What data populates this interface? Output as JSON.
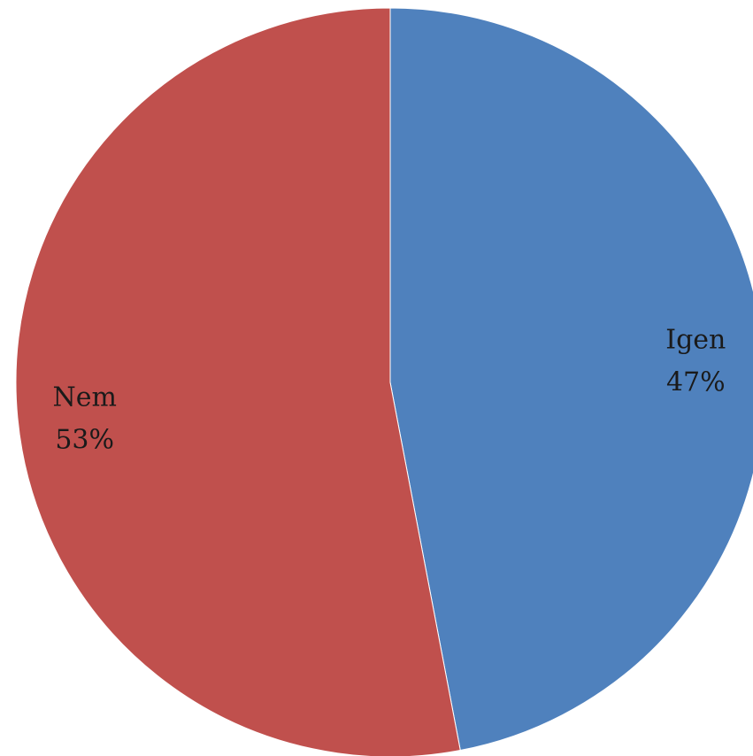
{
  "chart_data": {
    "type": "pie",
    "title": "",
    "start_angle_deg": 0,
    "direction": "clockwise",
    "slices": [
      {
        "label": "Igen",
        "value": 47,
        "display": "47%",
        "color": "#4F81BD"
      },
      {
        "label": "Nem",
        "value": 53,
        "display": "53%",
        "color": "#C0504D"
      }
    ]
  }
}
